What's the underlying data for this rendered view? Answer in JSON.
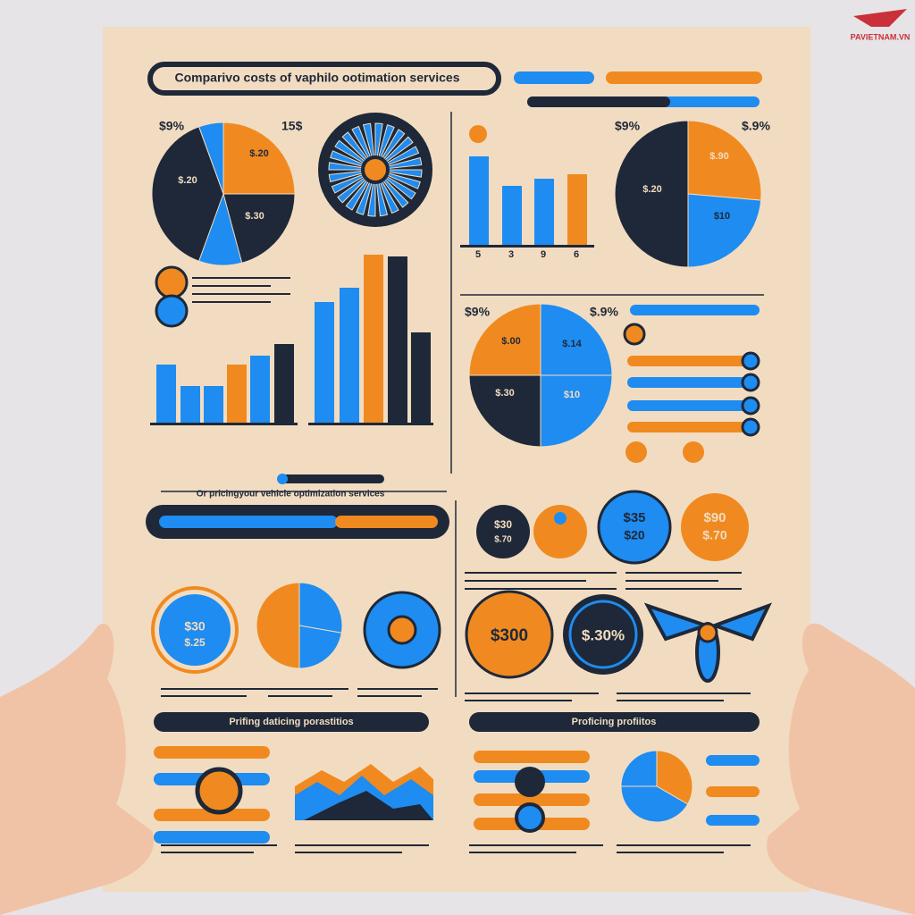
{
  "watermark": "PAVIETNAM.VN",
  "header": {
    "title": "Comparivo costs of vaphilo ootimation services"
  },
  "subtitle": "Or pricingyour vehicle optimization services",
  "pie_labels": {
    "top_left": [
      "$9%",
      "15$",
      "$.20",
      "$.20",
      "$.30"
    ],
    "top_right": [
      "$9%",
      "$.9%",
      "$.90",
      "$.20",
      "$10"
    ],
    "middle": [
      "$9%",
      "$.9%",
      "$.00",
      "$.14",
      "$.30",
      "$10"
    ]
  },
  "bar_axis": [
    "5",
    "3",
    "9",
    "6"
  ],
  "badges": [
    "$30",
    "$.70",
    "$35",
    "$20",
    "$90",
    "$.70",
    "$30",
    "$.25",
    "$300",
    "$.30%"
  ],
  "sections": [
    "Prifing daticing porastitios",
    "Proficing profiitos"
  ]
}
